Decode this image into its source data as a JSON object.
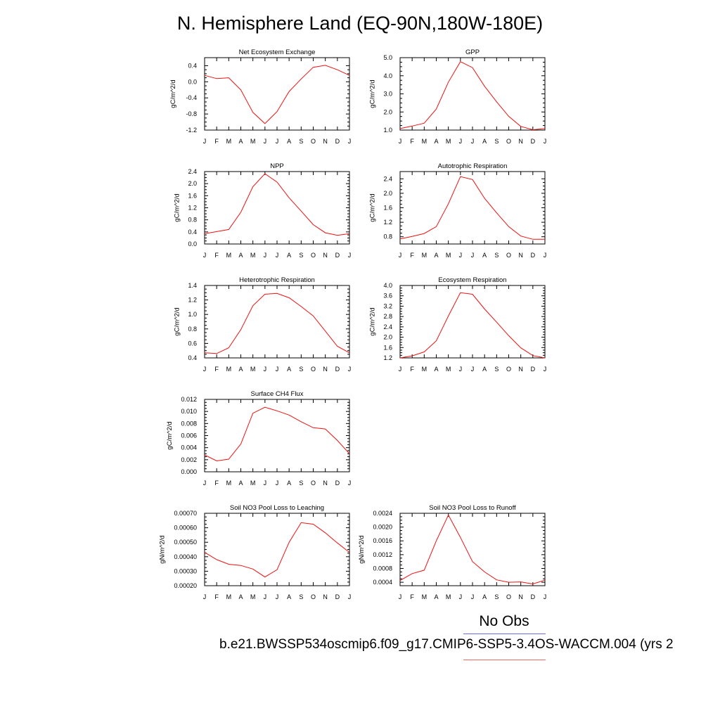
{
  "title": "N. Hemisphere Land (EQ-90N,180W-180E)",
  "legend": {
    "title": "No Obs",
    "case_label": "b.e21.BWSSP534oscmip6.f09_g17.CMIP6-SSP5-3.4OS-WACCM.004 (yrs 2",
    "obs_color": "#6a6af0",
    "model_color": "#ee1111"
  },
  "chart_data": [
    {
      "type": "line",
      "title": "Net Ecosystem Exchange",
      "ylabel": "gC/m^2/d",
      "x": [
        "J",
        "F",
        "M",
        "A",
        "M",
        "J",
        "J",
        "A",
        "S",
        "O",
        "N",
        "D",
        "J"
      ],
      "ylim": [
        -1.2,
        0.6
      ],
      "yticks": [
        -1.2,
        -0.8,
        -0.4,
        0.0,
        0.4
      ],
      "ytick_labels": [
        "-1.2",
        "-0.8",
        "-0.4",
        "0.0",
        "0.4"
      ],
      "series": [
        {
          "values": [
            0.16,
            0.08,
            0.1,
            -0.2,
            -0.76,
            -1.04,
            -0.74,
            -0.24,
            0.07,
            0.36,
            0.41,
            0.3,
            0.16
          ]
        }
      ]
    },
    {
      "type": "line",
      "title": "GPP",
      "ylabel": "gC/m^2/d",
      "x": [
        "J",
        "F",
        "M",
        "A",
        "M",
        "J",
        "J",
        "A",
        "S",
        "O",
        "N",
        "D",
        "J"
      ],
      "ylim": [
        1.0,
        5.0
      ],
      "yticks": [
        1.0,
        2.0,
        3.0,
        4.0,
        5.0
      ],
      "ytick_labels": [
        "1.0",
        "2.0",
        "3.0",
        "4.0",
        "5.0"
      ],
      "series": [
        {
          "values": [
            1.08,
            1.22,
            1.38,
            2.16,
            3.65,
            4.78,
            4.45,
            3.42,
            2.56,
            1.76,
            1.2,
            1.02,
            1.08
          ]
        }
      ]
    },
    {
      "type": "line",
      "title": "NPP",
      "ylabel": "gC/m^2/d",
      "x": [
        "J",
        "F",
        "M",
        "A",
        "M",
        "J",
        "J",
        "A",
        "S",
        "O",
        "N",
        "D",
        "J"
      ],
      "ylim": [
        0.0,
        2.4
      ],
      "yticks": [
        0.0,
        0.4,
        0.8,
        1.2,
        1.6,
        2.0,
        2.4
      ],
      "ytick_labels": [
        "0.0",
        "0.4",
        "0.8",
        "1.2",
        "1.6",
        "2.0",
        "2.4"
      ],
      "series": [
        {
          "values": [
            0.34,
            0.41,
            0.48,
            1.05,
            1.9,
            2.33,
            2.05,
            1.53,
            1.09,
            0.64,
            0.37,
            0.29,
            0.34
          ]
        }
      ]
    },
    {
      "type": "line",
      "title": "Autotrophic Respiration",
      "ylabel": "gC/m^2/d",
      "x": [
        "J",
        "F",
        "M",
        "A",
        "M",
        "J",
        "J",
        "A",
        "S",
        "O",
        "N",
        "D",
        "J"
      ],
      "ylim": [
        0.6,
        2.6
      ],
      "yticks": [
        0.8,
        1.2,
        1.6,
        2.0,
        2.4
      ],
      "ytick_labels": [
        "0.8",
        "1.2",
        "1.6",
        "2.0",
        "2.4"
      ],
      "series": [
        {
          "values": [
            0.74,
            0.81,
            0.89,
            1.08,
            1.71,
            2.46,
            2.38,
            1.86,
            1.46,
            1.08,
            0.82,
            0.73,
            0.73
          ]
        }
      ]
    },
    {
      "type": "line",
      "title": "Heterotrophic Respiration",
      "ylabel": "gC/m^2/d",
      "x": [
        "J",
        "F",
        "M",
        "A",
        "M",
        "J",
        "J",
        "A",
        "S",
        "O",
        "N",
        "D",
        "J"
      ],
      "ylim": [
        0.4,
        1.4
      ],
      "yticks": [
        0.4,
        0.6,
        0.8,
        1.0,
        1.2,
        1.4
      ],
      "ytick_labels": [
        "0.4",
        "0.6",
        "0.8",
        "1.0",
        "1.2",
        "1.4"
      ],
      "series": [
        {
          "values": [
            0.47,
            0.46,
            0.54,
            0.79,
            1.12,
            1.28,
            1.29,
            1.23,
            1.11,
            0.98,
            0.77,
            0.56,
            0.47
          ]
        }
      ]
    },
    {
      "type": "line",
      "title": "Ecosystem Respiration",
      "ylabel": "gC/m^2/d",
      "x": [
        "J",
        "F",
        "M",
        "A",
        "M",
        "J",
        "J",
        "A",
        "S",
        "O",
        "N",
        "D",
        "J"
      ],
      "ylim": [
        1.2,
        4.0
      ],
      "yticks": [
        1.2,
        1.6,
        2.0,
        2.4,
        2.8,
        3.2,
        3.6,
        4.0
      ],
      "ytick_labels": [
        "1.2",
        "1.6",
        "2.0",
        "2.4",
        "2.8",
        "3.2",
        "3.6",
        "4.0"
      ],
      "series": [
        {
          "values": [
            1.2,
            1.28,
            1.43,
            1.86,
            2.82,
            3.72,
            3.66,
            3.09,
            2.58,
            2.06,
            1.59,
            1.29,
            1.2
          ]
        }
      ]
    },
    {
      "type": "line",
      "title": "Surface CH4 Flux",
      "ylabel": "gC/m^2/d",
      "x": [
        "J",
        "F",
        "M",
        "A",
        "M",
        "J",
        "J",
        "A",
        "S",
        "O",
        "N",
        "D",
        "J"
      ],
      "ylim": [
        0.0,
        0.012
      ],
      "yticks": [
        0.0,
        0.002,
        0.004,
        0.006,
        0.008,
        0.01,
        0.012
      ],
      "ytick_labels": [
        "0.000",
        "0.002",
        "0.004",
        "0.006",
        "0.008",
        "0.010",
        "0.012"
      ],
      "series": [
        {
          "values": [
            0.0028,
            0.0018,
            0.0021,
            0.0046,
            0.0097,
            0.0107,
            0.0101,
            0.0094,
            0.0083,
            0.0073,
            0.0071,
            0.0052,
            0.003
          ]
        }
      ]
    },
    {
      "type": "line",
      "title": "Soil NO3 Pool Loss to Leaching",
      "ylabel": "gN/m^2/d",
      "x": [
        "J",
        "F",
        "M",
        "A",
        "M",
        "J",
        "J",
        "A",
        "S",
        "O",
        "N",
        "D",
        "J"
      ],
      "ylim": [
        0.0002,
        0.0007
      ],
      "yticks": [
        0.0002,
        0.0003,
        0.0004,
        0.0005,
        0.0006,
        0.0007
      ],
      "ytick_labels": [
        "0.00020",
        "0.00030",
        "0.00040",
        "0.00050",
        "0.00060",
        "0.00070"
      ],
      "series": [
        {
          "values": [
            0.00043,
            0.00038,
            0.000348,
            0.00034,
            0.000315,
            0.00026,
            0.00031,
            0.0005,
            0.000635,
            0.000625,
            0.000565,
            0.000495,
            0.00043
          ]
        }
      ]
    },
    {
      "type": "line",
      "title": "Soil NO3 Pool Loss to Runoff",
      "ylabel": "gN/m^2/d",
      "x": [
        "J",
        "F",
        "M",
        "A",
        "M",
        "J",
        "J",
        "A",
        "S",
        "O",
        "N",
        "D",
        "J"
      ],
      "ylim": [
        0.0003,
        0.0024
      ],
      "yticks": [
        0.0004,
        0.0008,
        0.0012,
        0.0016,
        0.002,
        0.0024
      ],
      "ytick_labels": [
        "0.0004",
        "0.0008",
        "0.0012",
        "0.0016",
        "0.0020",
        "0.0024"
      ],
      "series": [
        {
          "values": [
            0.00045,
            0.00065,
            0.00075,
            0.0016,
            0.00235,
            0.0017,
            0.001,
            0.0007,
            0.00047,
            0.0004,
            0.00041,
            0.00035,
            0.00046
          ]
        }
      ]
    }
  ]
}
